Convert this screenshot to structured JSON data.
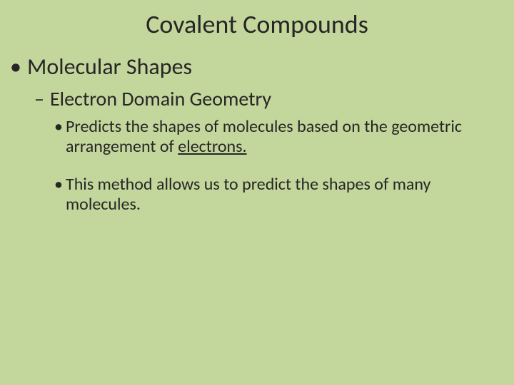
{
  "background_color": "#c3d69b",
  "text_color": "#262626",
  "font_family": "Calibri",
  "title": {
    "text": "Covalent Compounds",
    "fontsize": 36,
    "align": "center"
  },
  "bullets": {
    "level1": {
      "marker": "•",
      "text": "Molecular Shapes",
      "fontsize": 32
    },
    "level2": {
      "marker": "–",
      "text": "Electron Domain Geometry",
      "fontsize": 28
    },
    "level3": [
      {
        "marker": "•",
        "pre_text": "Predicts the shapes of molecules based on the geometric arrangement of ",
        "underlined": "electrons.",
        "post_text": "",
        "fontsize": 24
      },
      {
        "marker": "•",
        "pre_text": "This method allows us to predict the shapes of many molecules.",
        "underlined": "",
        "post_text": "",
        "fontsize": 24
      }
    ]
  }
}
